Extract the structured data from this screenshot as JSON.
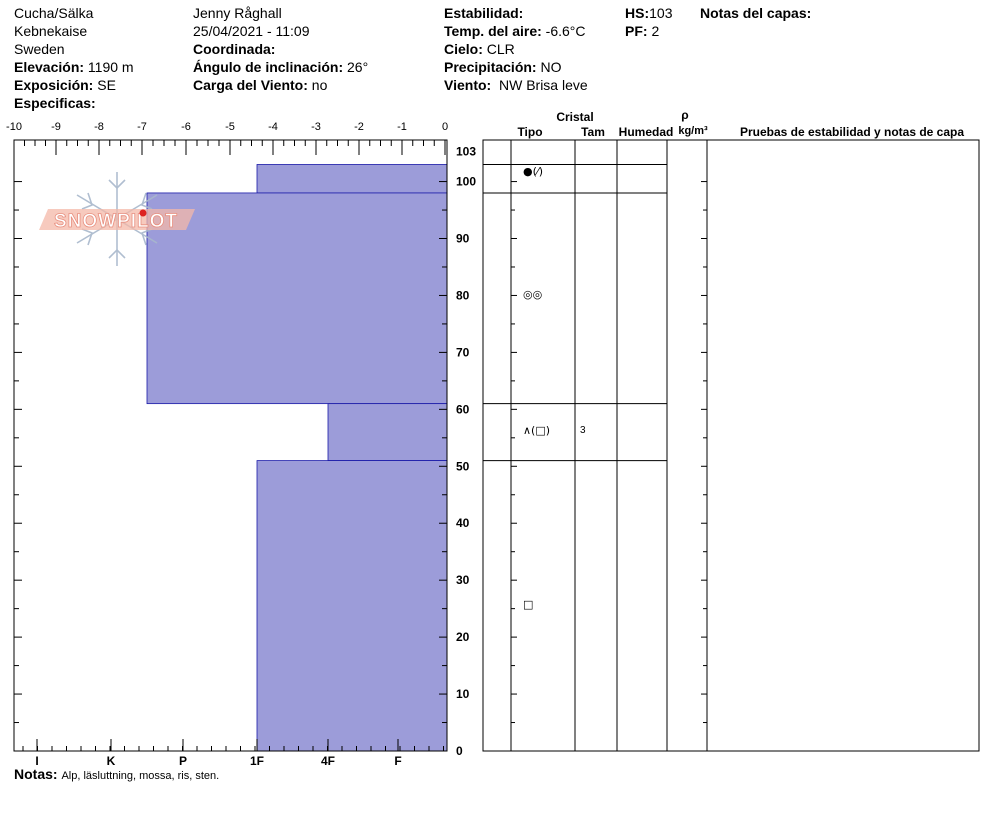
{
  "header": {
    "location": "Cucha/Sälka",
    "area": "Kebnekaise",
    "country": "Sweden",
    "elevation_label": "Elevación:",
    "elevation": "1190 m",
    "aspect_label": "Exposición:",
    "aspect": "SE",
    "specifics_label": "Especificas:",
    "observer": "Jenny Råghall",
    "datetime": "25/04/2021 - 11:09",
    "coords_label": "Coordinada:",
    "slope_label": "Ángulo de inclinación:",
    "slope": "26°",
    "wind_load_label": "Carga del Viento:",
    "wind_load": "no",
    "stability_label": "Estabilidad:",
    "air_temp_label": "Temp. del aire:",
    "air_temp": "-6.6°C",
    "sky_label": "Cielo:",
    "sky": "CLR",
    "precip_label": "Precipitación:",
    "precip": "NO",
    "wind_label": "Viento:",
    "wind": "NW Brisa leve",
    "hs_label": "HS:",
    "hs": "103",
    "pf_label": "PF:",
    "pf": "2",
    "layer_notes_label": "Notas del capas:"
  },
  "notes": {
    "label": "Notas:",
    "text": "Alp, läsluttning, mossa, ris, sten."
  },
  "colors": {
    "layer_fill": "#9c9cd9",
    "layer_edge": "#1a1aa8",
    "logo_text": "#f0a090",
    "logo_flake": "#a8b8cc",
    "logo_dot": "#dd2222"
  },
  "logo": {
    "text": "SNOWPILOT",
    "icon": "snowflake-icon"
  },
  "chart_data": {
    "type": "snow_profile",
    "x_top_ticks": [
      "-10",
      "-9",
      "-8",
      "-7",
      "-6",
      "-5",
      "-4",
      "-3",
      "-2",
      "-1",
      "0"
    ],
    "hardness_ticks": [
      "I",
      "K",
      "P",
      "1F",
      "4F",
      "F"
    ],
    "y_ticks": [
      "0",
      "10",
      "20",
      "30",
      "40",
      "50",
      "60",
      "70",
      "80",
      "90",
      "100",
      "103"
    ],
    "ylim": [
      0,
      103
    ],
    "hardness_scale": {
      "F": 1,
      "4F": 2,
      "1F": 3,
      "P": 4,
      "K": 5,
      "I": 6
    },
    "layers": [
      {
        "top": 103,
        "bottom": 98,
        "hardness": "1F",
        "hardness_value": 3.0,
        "grain": "●(⁄)",
        "size": ""
      },
      {
        "top": 98,
        "bottom": 61,
        "hardness": "P+",
        "hardness_value": 4.5,
        "grain": "◎◎",
        "size": ""
      },
      {
        "top": 61,
        "bottom": 51,
        "hardness": "4F",
        "hardness_value": 2.0,
        "grain": "∧(□)",
        "size": "3"
      },
      {
        "top": 51,
        "bottom": 0,
        "hardness": "1F",
        "hardness_value": 3.0,
        "grain": "□",
        "size": ""
      }
    ],
    "table_headers": {
      "crystal": "Cristal",
      "type": "Tipo",
      "size": "Tam",
      "moisture": "Humedad",
      "rho": "ρ",
      "density_unit": "kg/m³",
      "tests": "Pruebas de estabilidad y notas de capa"
    }
  }
}
